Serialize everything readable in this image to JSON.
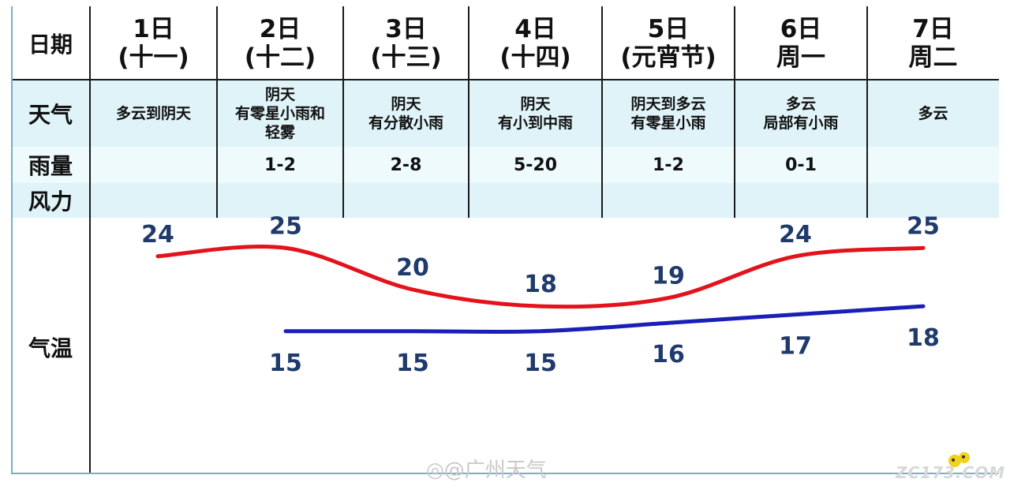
{
  "table": {
    "row_labels": {
      "date": "日期",
      "weather": "天气",
      "rain": "雨量",
      "wind": "风力",
      "temp": "气温"
    },
    "days": [
      {
        "day": "1日",
        "sub": "(十一)",
        "weather": [
          "多云到阴天"
        ],
        "rain": ""
      },
      {
        "day": "2日",
        "sub": "(十二)",
        "weather": [
          "阴天",
          "有零星小雨和",
          "轻雾"
        ],
        "rain": "1-2"
      },
      {
        "day": "3日",
        "sub": "(十三)",
        "weather": [
          "阴天",
          "有分散小雨"
        ],
        "rain": "2-8"
      },
      {
        "day": "4日",
        "sub": "(十四)",
        "weather": [
          "阴天",
          "有小到中雨"
        ],
        "rain": "5-20"
      },
      {
        "day": "5日",
        "sub": "(元宵节)",
        "weather": [
          "阴天到多云",
          "有零星小雨"
        ],
        "rain": "1-2"
      },
      {
        "day": "6日",
        "sub": "周一",
        "weather": [
          "多云",
          "局部有小雨"
        ],
        "rain": "0-1"
      },
      {
        "day": "7日",
        "sub": "周二",
        "weather": [
          "多云"
        ],
        "rain": ""
      }
    ]
  },
  "chart_data": {
    "type": "line",
    "categories": [
      "1日",
      "2日",
      "3日",
      "4日",
      "5日",
      "6日",
      "7日"
    ],
    "series": [
      {
        "values": [
          24,
          25,
          20,
          18,
          19,
          24,
          25
        ],
        "color": "#e3121b"
      },
      {
        "values": [
          null,
          15,
          15,
          15,
          16,
          17,
          18
        ],
        "color": "#1a1fb8"
      }
    ],
    "label_color": "#1f3a6b",
    "grid": false
  },
  "watermark": {
    "text": "@广州天气",
    "logo": "ZC173.COM"
  },
  "colors": {
    "band_light": "#eaf8fb",
    "band_mid": "#d9f1f6",
    "grid": "#1a1a1a"
  }
}
